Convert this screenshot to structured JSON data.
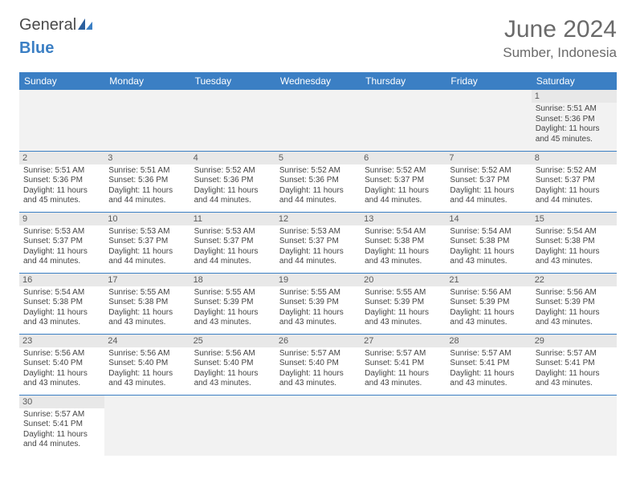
{
  "logo": {
    "general": "General",
    "blue": "Blue"
  },
  "title": "June 2024",
  "location": "Sumber, Indonesia",
  "colors": {
    "header_bg": "#3b7fc4",
    "header_text": "#ffffff",
    "day_num_bg": "#e8e8e8",
    "empty_bg": "#f2f2f2",
    "border": "#3b7fc4",
    "text": "#444444",
    "title_color": "#6a6a6a"
  },
  "typography": {
    "title_fontsize": 30,
    "location_fontsize": 17,
    "header_fontsize": 12,
    "daynum_fontsize": 11,
    "info_fontsize": 10
  },
  "weekdays": [
    "Sunday",
    "Monday",
    "Tuesday",
    "Wednesday",
    "Thursday",
    "Friday",
    "Saturday"
  ],
  "weeks": [
    [
      null,
      null,
      null,
      null,
      null,
      null,
      {
        "n": "1",
        "sunrise": "5:51 AM",
        "sunset": "5:36 PM",
        "daylight": "11 hours and 45 minutes."
      }
    ],
    [
      {
        "n": "2",
        "sunrise": "5:51 AM",
        "sunset": "5:36 PM",
        "daylight": "11 hours and 45 minutes."
      },
      {
        "n": "3",
        "sunrise": "5:51 AM",
        "sunset": "5:36 PM",
        "daylight": "11 hours and 44 minutes."
      },
      {
        "n": "4",
        "sunrise": "5:52 AM",
        "sunset": "5:36 PM",
        "daylight": "11 hours and 44 minutes."
      },
      {
        "n": "5",
        "sunrise": "5:52 AM",
        "sunset": "5:36 PM",
        "daylight": "11 hours and 44 minutes."
      },
      {
        "n": "6",
        "sunrise": "5:52 AM",
        "sunset": "5:37 PM",
        "daylight": "11 hours and 44 minutes."
      },
      {
        "n": "7",
        "sunrise": "5:52 AM",
        "sunset": "5:37 PM",
        "daylight": "11 hours and 44 minutes."
      },
      {
        "n": "8",
        "sunrise": "5:52 AM",
        "sunset": "5:37 PM",
        "daylight": "11 hours and 44 minutes."
      }
    ],
    [
      {
        "n": "9",
        "sunrise": "5:53 AM",
        "sunset": "5:37 PM",
        "daylight": "11 hours and 44 minutes."
      },
      {
        "n": "10",
        "sunrise": "5:53 AM",
        "sunset": "5:37 PM",
        "daylight": "11 hours and 44 minutes."
      },
      {
        "n": "11",
        "sunrise": "5:53 AM",
        "sunset": "5:37 PM",
        "daylight": "11 hours and 44 minutes."
      },
      {
        "n": "12",
        "sunrise": "5:53 AM",
        "sunset": "5:37 PM",
        "daylight": "11 hours and 44 minutes."
      },
      {
        "n": "13",
        "sunrise": "5:54 AM",
        "sunset": "5:38 PM",
        "daylight": "11 hours and 43 minutes."
      },
      {
        "n": "14",
        "sunrise": "5:54 AM",
        "sunset": "5:38 PM",
        "daylight": "11 hours and 43 minutes."
      },
      {
        "n": "15",
        "sunrise": "5:54 AM",
        "sunset": "5:38 PM",
        "daylight": "11 hours and 43 minutes."
      }
    ],
    [
      {
        "n": "16",
        "sunrise": "5:54 AM",
        "sunset": "5:38 PM",
        "daylight": "11 hours and 43 minutes."
      },
      {
        "n": "17",
        "sunrise": "5:55 AM",
        "sunset": "5:38 PM",
        "daylight": "11 hours and 43 minutes."
      },
      {
        "n": "18",
        "sunrise": "5:55 AM",
        "sunset": "5:39 PM",
        "daylight": "11 hours and 43 minutes."
      },
      {
        "n": "19",
        "sunrise": "5:55 AM",
        "sunset": "5:39 PM",
        "daylight": "11 hours and 43 minutes."
      },
      {
        "n": "20",
        "sunrise": "5:55 AM",
        "sunset": "5:39 PM",
        "daylight": "11 hours and 43 minutes."
      },
      {
        "n": "21",
        "sunrise": "5:56 AM",
        "sunset": "5:39 PM",
        "daylight": "11 hours and 43 minutes."
      },
      {
        "n": "22",
        "sunrise": "5:56 AM",
        "sunset": "5:39 PM",
        "daylight": "11 hours and 43 minutes."
      }
    ],
    [
      {
        "n": "23",
        "sunrise": "5:56 AM",
        "sunset": "5:40 PM",
        "daylight": "11 hours and 43 minutes."
      },
      {
        "n": "24",
        "sunrise": "5:56 AM",
        "sunset": "5:40 PM",
        "daylight": "11 hours and 43 minutes."
      },
      {
        "n": "25",
        "sunrise": "5:56 AM",
        "sunset": "5:40 PM",
        "daylight": "11 hours and 43 minutes."
      },
      {
        "n": "26",
        "sunrise": "5:57 AM",
        "sunset": "5:40 PM",
        "daylight": "11 hours and 43 minutes."
      },
      {
        "n": "27",
        "sunrise": "5:57 AM",
        "sunset": "5:41 PM",
        "daylight": "11 hours and 43 minutes."
      },
      {
        "n": "28",
        "sunrise": "5:57 AM",
        "sunset": "5:41 PM",
        "daylight": "11 hours and 43 minutes."
      },
      {
        "n": "29",
        "sunrise": "5:57 AM",
        "sunset": "5:41 PM",
        "daylight": "11 hours and 43 minutes."
      }
    ],
    [
      {
        "n": "30",
        "sunrise": "5:57 AM",
        "sunset": "5:41 PM",
        "daylight": "11 hours and 44 minutes."
      },
      null,
      null,
      null,
      null,
      null,
      null
    ]
  ],
  "labels": {
    "sunrise": "Sunrise:",
    "sunset": "Sunset:",
    "daylight": "Daylight:"
  }
}
